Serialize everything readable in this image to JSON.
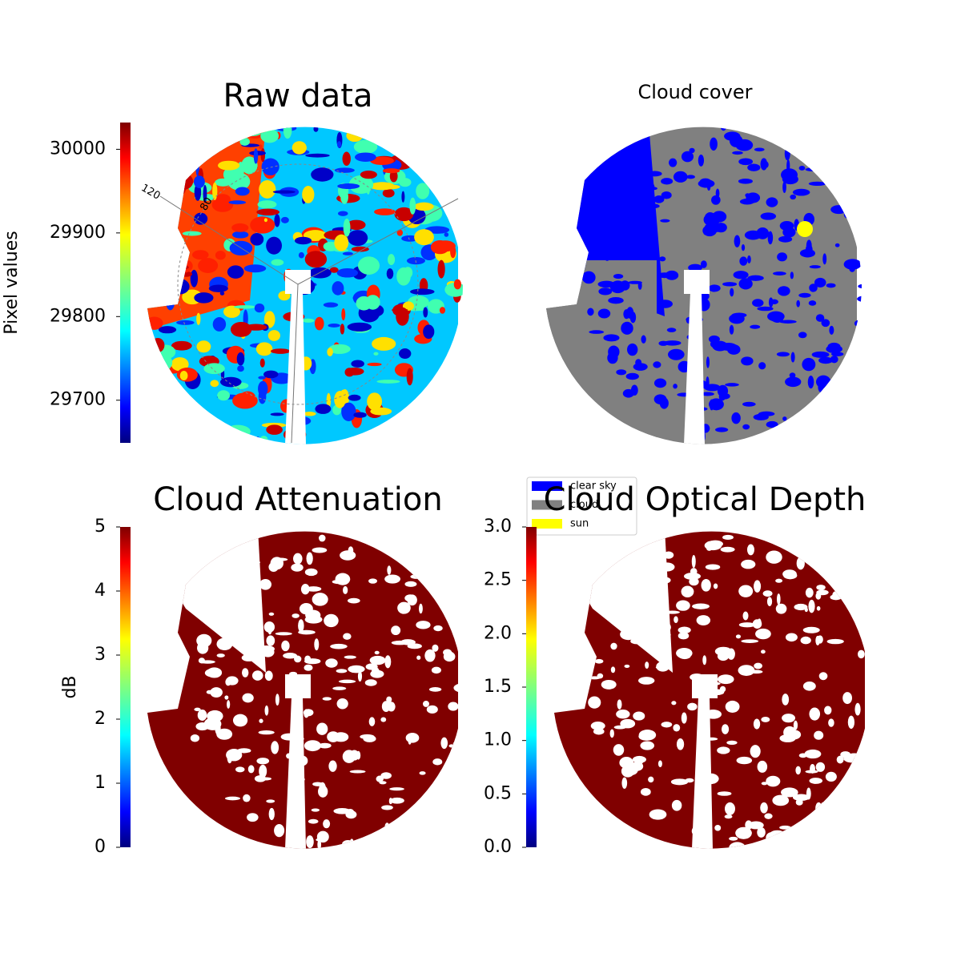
{
  "chart_data": [
    {
      "type": "image",
      "title": "Raw data",
      "annotations": [
        "120",
        "80"
      ],
      "colorbar": {
        "label": "Pixel values",
        "colormap": "jet",
        "lim": [
          29649,
          30032
        ],
        "ticks": [
          29700,
          29800,
          29900,
          30000
        ]
      }
    },
    {
      "type": "image",
      "title": "Cloud cover",
      "legend": {
        "corner": "lower left",
        "entries": [
          {
            "name": "clear sky",
            "color": "#0000ff"
          },
          {
            "name": "cloud",
            "color": "#808080"
          },
          {
            "name": "sun",
            "color": "#ffff00"
          }
        ]
      }
    },
    {
      "type": "image",
      "title": "Cloud Attenuation",
      "colorbar": {
        "label": "dB",
        "colormap": "jet",
        "lim": [
          0,
          5
        ],
        "ticks": [
          0,
          1,
          2,
          3,
          4,
          5
        ]
      }
    },
    {
      "type": "image",
      "title": "Cloud Optical Depth",
      "colorbar": {
        "colormap": "jet",
        "lim": [
          0,
          3
        ],
        "ticks": [
          {
            "value": 0,
            "label": "0.0"
          },
          0.5,
          {
            "value": 1,
            "label": "1.0"
          },
          1.5,
          {
            "value": 2,
            "label": "2.0"
          },
          2.5,
          {
            "value": 3,
            "label": "3.0"
          }
        ]
      }
    }
  ]
}
